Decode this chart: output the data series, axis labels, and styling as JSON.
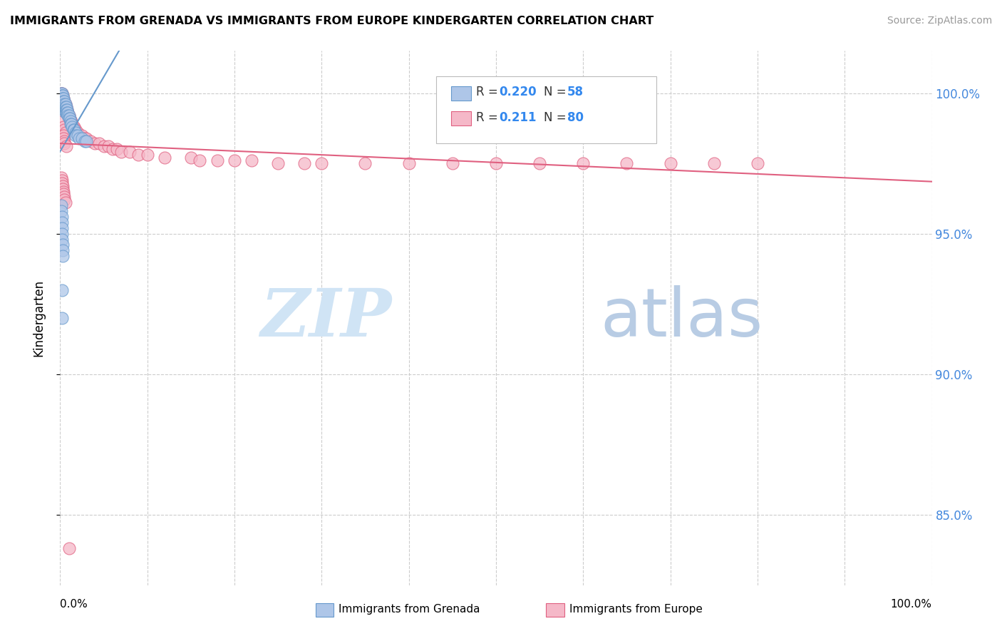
{
  "title": "IMMIGRANTS FROM GRENADA VS IMMIGRANTS FROM EUROPE KINDERGARTEN CORRELATION CHART",
  "source": "Source: ZipAtlas.com",
  "ylabel": "Kindergarten",
  "ytick_labels": [
    "85.0%",
    "90.0%",
    "95.0%",
    "100.0%"
  ],
  "ytick_values": [
    0.85,
    0.9,
    0.95,
    1.0
  ],
  "xlim": [
    0.0,
    1.0
  ],
  "ylim": [
    0.825,
    1.015
  ],
  "legend_r1": "0.220",
  "legend_n1": "58",
  "legend_r2": "0.211",
  "legend_n2": "80",
  "series1_label": "Immigrants from Grenada",
  "series2_label": "Immigrants from Europe",
  "series1_color": "#aec6e8",
  "series2_color": "#f5b8c8",
  "trendline1_color": "#6699cc",
  "trendline2_color": "#e06080",
  "watermark_zip": "ZIP",
  "watermark_atlas": "atlas",
  "series1_x": [
    0.001,
    0.002,
    0.002,
    0.002,
    0.002,
    0.002,
    0.003,
    0.003,
    0.003,
    0.003,
    0.003,
    0.004,
    0.004,
    0.004,
    0.004,
    0.005,
    0.005,
    0.005,
    0.005,
    0.006,
    0.006,
    0.006,
    0.006,
    0.007,
    0.007,
    0.007,
    0.008,
    0.008,
    0.009,
    0.009,
    0.01,
    0.01,
    0.011,
    0.012,
    0.012,
    0.013,
    0.014,
    0.015,
    0.016,
    0.018,
    0.018,
    0.02,
    0.022,
    0.025,
    0.028,
    0.03,
    0.001,
    0.001,
    0.002,
    0.002,
    0.002,
    0.002,
    0.002,
    0.003,
    0.003,
    0.003,
    0.002,
    0.002
  ],
  "series1_y": [
    1.0,
    1.0,
    0.999,
    0.998,
    0.997,
    0.996,
    0.999,
    0.998,
    0.997,
    0.996,
    0.995,
    0.998,
    0.997,
    0.996,
    0.995,
    0.997,
    0.996,
    0.995,
    0.994,
    0.996,
    0.995,
    0.994,
    0.993,
    0.995,
    0.994,
    0.993,
    0.994,
    0.993,
    0.993,
    0.992,
    0.992,
    0.991,
    0.991,
    0.99,
    0.989,
    0.989,
    0.988,
    0.987,
    0.987,
    0.986,
    0.985,
    0.985,
    0.984,
    0.984,
    0.983,
    0.983,
    0.96,
    0.958,
    0.956,
    0.954,
    0.952,
    0.95,
    0.948,
    0.946,
    0.944,
    0.942,
    0.93,
    0.92
  ],
  "series2_x": [
    0.001,
    0.002,
    0.002,
    0.003,
    0.003,
    0.004,
    0.004,
    0.005,
    0.005,
    0.006,
    0.006,
    0.007,
    0.007,
    0.008,
    0.008,
    0.009,
    0.009,
    0.01,
    0.011,
    0.012,
    0.013,
    0.014,
    0.015,
    0.016,
    0.018,
    0.02,
    0.022,
    0.025,
    0.028,
    0.03,
    0.035,
    0.04,
    0.045,
    0.05,
    0.055,
    0.06,
    0.065,
    0.07,
    0.08,
    0.09,
    0.1,
    0.12,
    0.15,
    0.16,
    0.18,
    0.2,
    0.22,
    0.25,
    0.28,
    0.3,
    0.35,
    0.4,
    0.45,
    0.5,
    0.55,
    0.6,
    0.65,
    0.7,
    0.75,
    0.8,
    0.001,
    0.002,
    0.002,
    0.003,
    0.003,
    0.004,
    0.004,
    0.005,
    0.005,
    0.006,
    0.003,
    0.004,
    0.005,
    0.006,
    0.004,
    0.004,
    0.005,
    0.005,
    0.007,
    0.01
  ],
  "series2_y": [
    1.0,
    1.0,
    0.999,
    0.999,
    0.998,
    0.998,
    0.997,
    0.997,
    0.996,
    0.996,
    0.995,
    0.995,
    0.994,
    0.994,
    0.993,
    0.993,
    0.992,
    0.992,
    0.991,
    0.99,
    0.99,
    0.989,
    0.988,
    0.988,
    0.987,
    0.986,
    0.985,
    0.985,
    0.984,
    0.984,
    0.983,
    0.982,
    0.982,
    0.981,
    0.981,
    0.98,
    0.98,
    0.979,
    0.979,
    0.978,
    0.978,
    0.977,
    0.977,
    0.976,
    0.976,
    0.976,
    0.976,
    0.975,
    0.975,
    0.975,
    0.975,
    0.975,
    0.975,
    0.975,
    0.975,
    0.975,
    0.975,
    0.975,
    0.975,
    0.975,
    0.97,
    0.969,
    0.968,
    0.967,
    0.966,
    0.965,
    0.964,
    0.963,
    0.962,
    0.961,
    0.99,
    0.988,
    0.987,
    0.986,
    0.985,
    0.984,
    0.983,
    0.982,
    0.981,
    0.838
  ]
}
